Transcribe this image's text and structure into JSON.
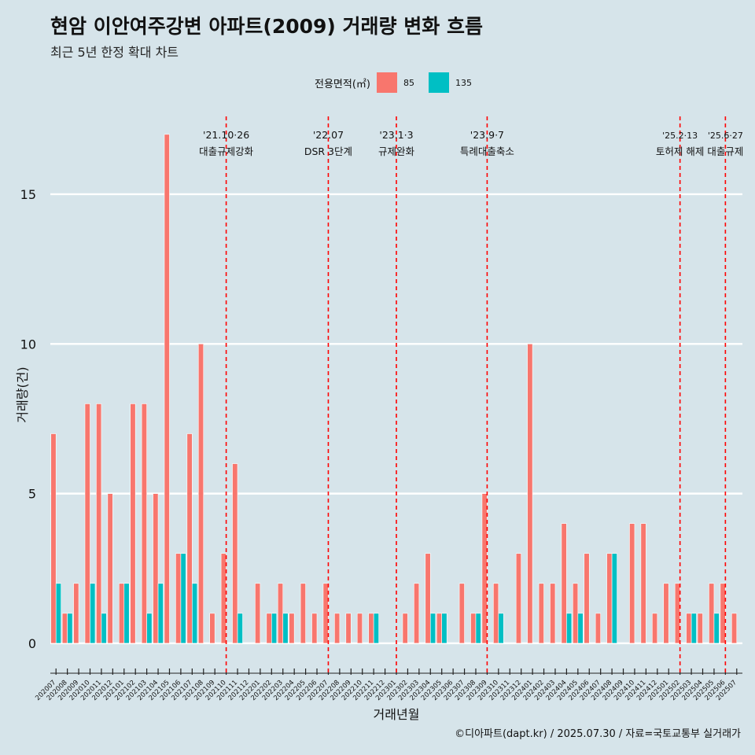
{
  "chart_data": {
    "type": "bar",
    "title": "현암 이안여주강변 아파트(2009) 거래량 변화 흐름",
    "subtitle": "최근 5년 한정 확대 차트",
    "xlabel": "거래년월",
    "ylabel": "거래량(건)",
    "ylim": [
      -1,
      17.6
    ],
    "yticks": [
      0,
      5,
      10,
      15
    ],
    "grid": true,
    "legend": {
      "title": "전용면적(㎡)",
      "placement": "top",
      "items": [
        {
          "label": "85",
          "color": "#f8766d"
        },
        {
          "label": "135",
          "color": "#00bfc4"
        }
      ]
    },
    "categories": [
      "202007",
      "202008",
      "202009",
      "202010",
      "202011",
      "202012",
      "202101",
      "202102",
      "202103",
      "202104",
      "202105",
      "202106",
      "202107",
      "202108",
      "202109",
      "202110",
      "202111",
      "202112",
      "202201",
      "202202",
      "202203",
      "202204",
      "202205",
      "202206",
      "202207",
      "202208",
      "202209",
      "202210",
      "202211",
      "202212",
      "202301",
      "202302",
      "202303",
      "202304",
      "202305",
      "202306",
      "202307",
      "202308",
      "202309",
      "202310",
      "202311",
      "202312",
      "202401",
      "202402",
      "202403",
      "202404",
      "202405",
      "202406",
      "202407",
      "202408",
      "202409",
      "202410",
      "202411",
      "202412",
      "202501",
      "202502",
      "202503",
      "202504",
      "202505",
      "202506",
      "202507"
    ],
    "series": [
      {
        "name": "85",
        "color": "#f8766d",
        "values": [
          7,
          1,
          2,
          8,
          8,
          5,
          2,
          8,
          8,
          5,
          17,
          3,
          7,
          10,
          1,
          3,
          6,
          0,
          2,
          1,
          2,
          1,
          2,
          1,
          2,
          1,
          1,
          1,
          1,
          0,
          0,
          1,
          2,
          3,
          1,
          0,
          2,
          1,
          5,
          2,
          0,
          3,
          10,
          2,
          2,
          4,
          2,
          3,
          1,
          3,
          0,
          4,
          4,
          1,
          2,
          2,
          1,
          1,
          2,
          2,
          1
        ]
      },
      {
        "name": "135",
        "color": "#00bfc4",
        "values": [
          2,
          1,
          0,
          2,
          1,
          0,
          2,
          0,
          1,
          2,
          0,
          3,
          2,
          0,
          0,
          0,
          1,
          0,
          0,
          1,
          1,
          0,
          0,
          0,
          0,
          0,
          0,
          0,
          1,
          0,
          0,
          0,
          0,
          1,
          1,
          0,
          0,
          1,
          0,
          1,
          0,
          0,
          0,
          0,
          0,
          1,
          1,
          0,
          0,
          3,
          0,
          0,
          0,
          0,
          0,
          0,
          1,
          0,
          1,
          0,
          0
        ]
      }
    ],
    "annotations": [
      {
        "date": "'21.10·26",
        "label": "대출규제강화",
        "at": "202110"
      },
      {
        "date": "'22.07",
        "label": "DSR 3단계",
        "at": "202207"
      },
      {
        "date": "'23.1·3",
        "label": "규제완화",
        "at": "202301"
      },
      {
        "date": "'23.9·7",
        "label": "특례대출축소",
        "at": "202309"
      },
      {
        "date": "'25.2·13",
        "label": "토허제 해제",
        "at": "202502"
      },
      {
        "date": "'25.6·27",
        "label": "대출규제",
        "at": "202506"
      }
    ],
    "annotation_color": "#ff0000"
  },
  "caption": "©디아파트(dapt.kr) / 2025.07.30 / 자료=국토교통부 실거래가"
}
